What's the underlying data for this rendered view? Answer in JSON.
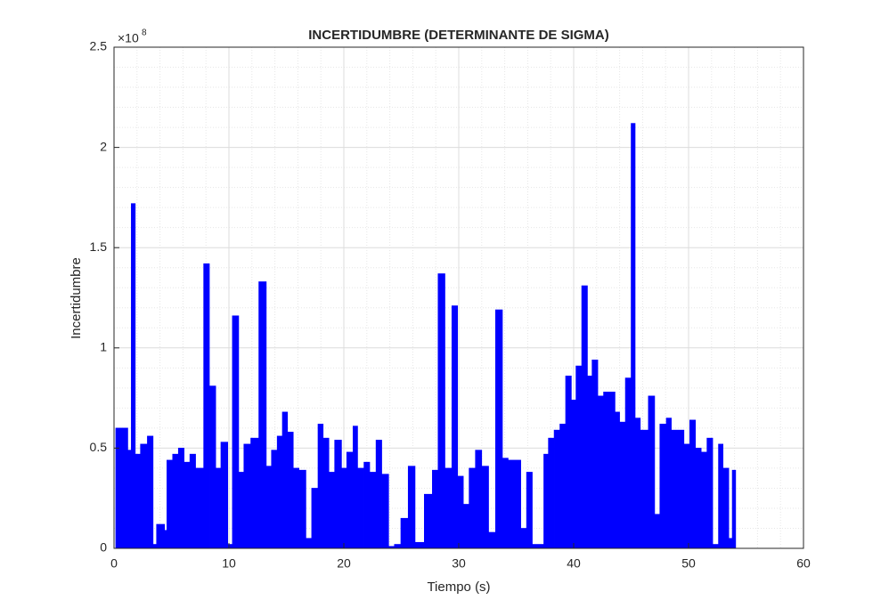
{
  "chart_data": {
    "type": "histogram",
    "title": "INCERTIDUMBRE (DETERMINANTE DE SIGMA)",
    "xlabel": "Tiempo (s)",
    "ylabel": "Incertidumbre",
    "y_exponent_base": "×10",
    "y_exponent": 8,
    "color": "#0000ff",
    "bins": [
      0.15,
      1.2,
      1.5,
      1.85,
      2.3,
      2.9,
      3.4,
      3.7,
      4.4,
      4.6,
      5.1,
      5.6,
      6.1,
      6.6,
      7.1,
      7.8,
      8.3,
      8.85,
      9.3,
      9.9,
      10.3,
      10.85,
      11.3,
      11.9,
      12.6,
      13.25,
      13.7,
      14.2,
      14.65,
      15.1,
      15.6,
      16.1,
      16.7,
      17.2,
      17.75,
      18.2,
      18.7,
      19.2,
      19.8,
      20.25,
      20.8,
      21.2,
      21.75,
      22.25,
      22.8,
      23.3,
      23.9,
      24.4,
      24.96,
      25.6,
      26.2,
      27.0,
      27.7,
      28.2,
      28.8,
      29.4,
      29.9,
      30.4,
      30.9,
      31.45,
      32.0,
      32.6,
      33.2,
      33.8,
      34.3,
      35.4,
      35.9,
      36.4,
      37.4,
      37.8,
      38.3,
      38.8,
      39.3,
      39.8,
      40.2,
      40.7,
      41.2,
      41.6,
      42.1,
      42.6,
      43.6,
      44.0,
      44.5,
      45.0,
      45.35,
      45.8,
      46.5,
      47.05,
      47.5,
      48.06,
      48.5,
      49.6,
      50.1,
      50.6,
      51.1,
      51.6,
      52.1,
      52.6,
      53.0,
      53.5,
      53.8,
      54.1
    ],
    "values": [
      0.6,
      0.49,
      1.72,
      0.47,
      0.52,
      0.56,
      0.02,
      0.12,
      0.09,
      0.44,
      0.47,
      0.5,
      0.43,
      0.47,
      0.4,
      1.42,
      0.81,
      0.4,
      0.53,
      0.02,
      1.16,
      0.38,
      0.52,
      0.55,
      1.33,
      0.41,
      0.49,
      0.56,
      0.68,
      0.58,
      0.4,
      0.39,
      0.05,
      0.3,
      0.62,
      0.55,
      0.38,
      0.54,
      0.4,
      0.48,
      0.61,
      0.4,
      0.43,
      0.38,
      0.54,
      0.37,
      0.01,
      0.02,
      0.15,
      0.41,
      0.03,
      0.27,
      0.39,
      1.37,
      0.4,
      1.21,
      0.36,
      0.22,
      0.4,
      0.49,
      0.41,
      0.08,
      1.19,
      0.45,
      0.44,
      0.1,
      0.38,
      0.02,
      0.47,
      0.55,
      0.59,
      0.62,
      0.86,
      0.74,
      0.91,
      1.31,
      0.86,
      0.94,
      0.76,
      0.78,
      0.68,
      0.63,
      0.85,
      2.12,
      0.65,
      0.59,
      0.76,
      0.17,
      0.62,
      0.65,
      0.59,
      0.52,
      0.64,
      0.5,
      0.48,
      0.55,
      0.02,
      0.52,
      0.4,
      0.05,
      0.39
    ],
    "xlim": [
      0,
      60
    ],
    "xticks": [
      0,
      10,
      20,
      30,
      40,
      50,
      60
    ],
    "ylim": [
      0,
      2.5
    ],
    "yticks": [
      0,
      0.5,
      1,
      1.5,
      2,
      2.5
    ],
    "grid": true,
    "minor_grid": true
  }
}
